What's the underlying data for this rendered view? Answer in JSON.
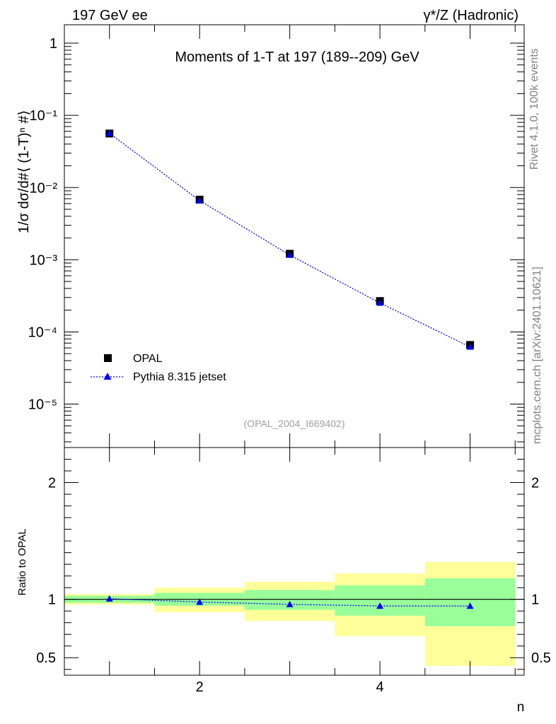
{
  "header": {
    "left": "197 GeV ee",
    "right": "γ*/Z (Hadronic)"
  },
  "side_labels": {
    "rivet": "Rivet 4.1.0,  100k events",
    "mcplots": "mcplots.cern.ch [arXiv:2401.10621]"
  },
  "chart_data": [
    {
      "type": "scatter",
      "title": "Moments of 1-T at 197 (189--209) GeV",
      "analysis_tag": "(OPAL_2004_I669402)",
      "xlabel": "n",
      "ylabel": "1/σ  dσ/d#⟨ (1-T)ⁿ #⟩",
      "yscale": "log",
      "xlim": [
        0.5,
        5.6
      ],
      "ylim": [
        2.5e-06,
        1.8
      ],
      "y_ticks": [
        {
          "value": 1,
          "label": "1"
        },
        {
          "value": 0.1,
          "label": "10⁻¹"
        },
        {
          "value": 0.01,
          "label": "10⁻²"
        },
        {
          "value": 0.001,
          "label": "10⁻³"
        },
        {
          "value": 0.0001,
          "label": "10⁻⁴"
        },
        {
          "value": 1e-05,
          "label": "10⁻⁵"
        }
      ],
      "series": [
        {
          "name": "OPAL",
          "marker": "square",
          "color": "#000000",
          "x": [
            1,
            2,
            3,
            4,
            5
          ],
          "y": [
            0.056,
            0.0068,
            0.00121,
            0.000268,
            6.6e-05
          ]
        },
        {
          "name": "Pythia 8.315 jetset",
          "marker": "triangle",
          "color": "#0000ff",
          "line": "dotted",
          "x": [
            1,
            2,
            3,
            4,
            5
          ],
          "y": [
            0.0565,
            0.0066,
            0.00116,
            0.000252,
            6.2e-05
          ]
        }
      ]
    },
    {
      "type": "line",
      "ylabel": "Ratio to OPAL",
      "xlabel": "n",
      "xlim": [
        0.5,
        5.6
      ],
      "ylim": [
        0.35,
        2.3
      ],
      "x_ticks": [
        {
          "value": 2,
          "label": "2"
        },
        {
          "value": 4,
          "label": "4"
        }
      ],
      "y_ticks": [
        {
          "value": 0.5,
          "label": "0.5"
        },
        {
          "value": 1,
          "label": "1"
        },
        {
          "value": 2,
          "label": "2"
        }
      ],
      "bands": [
        {
          "x0": 0.5,
          "x1": 1.5,
          "yellow": [
            0.955,
            1.045
          ],
          "green": [
            0.97,
            1.03
          ]
        },
        {
          "x0": 1.5,
          "x1": 2.5,
          "yellow": [
            0.89,
            1.1
          ],
          "green": [
            0.945,
            1.055
          ]
        },
        {
          "x0": 2.5,
          "x1": 3.5,
          "yellow": [
            0.815,
            1.15
          ],
          "green": [
            0.91,
            1.08
          ]
        },
        {
          "x0": 3.5,
          "x1": 4.5,
          "yellow": [
            0.685,
            1.22
          ],
          "green": [
            0.86,
            1.12
          ]
        },
        {
          "x0": 4.5,
          "x1": 5.5,
          "yellow": [
            0.43,
            1.32
          ],
          "green": [
            0.77,
            1.18
          ]
        }
      ],
      "series": [
        {
          "name": "Pythia 8.315 jetset / OPAL",
          "marker": "triangle",
          "color": "#0000ff",
          "line": "dotted",
          "x": [
            1,
            2,
            3,
            4,
            5
          ],
          "y": [
            1.005,
            0.977,
            0.957,
            0.943,
            0.943
          ]
        }
      ],
      "reference_line": 1
    }
  ]
}
